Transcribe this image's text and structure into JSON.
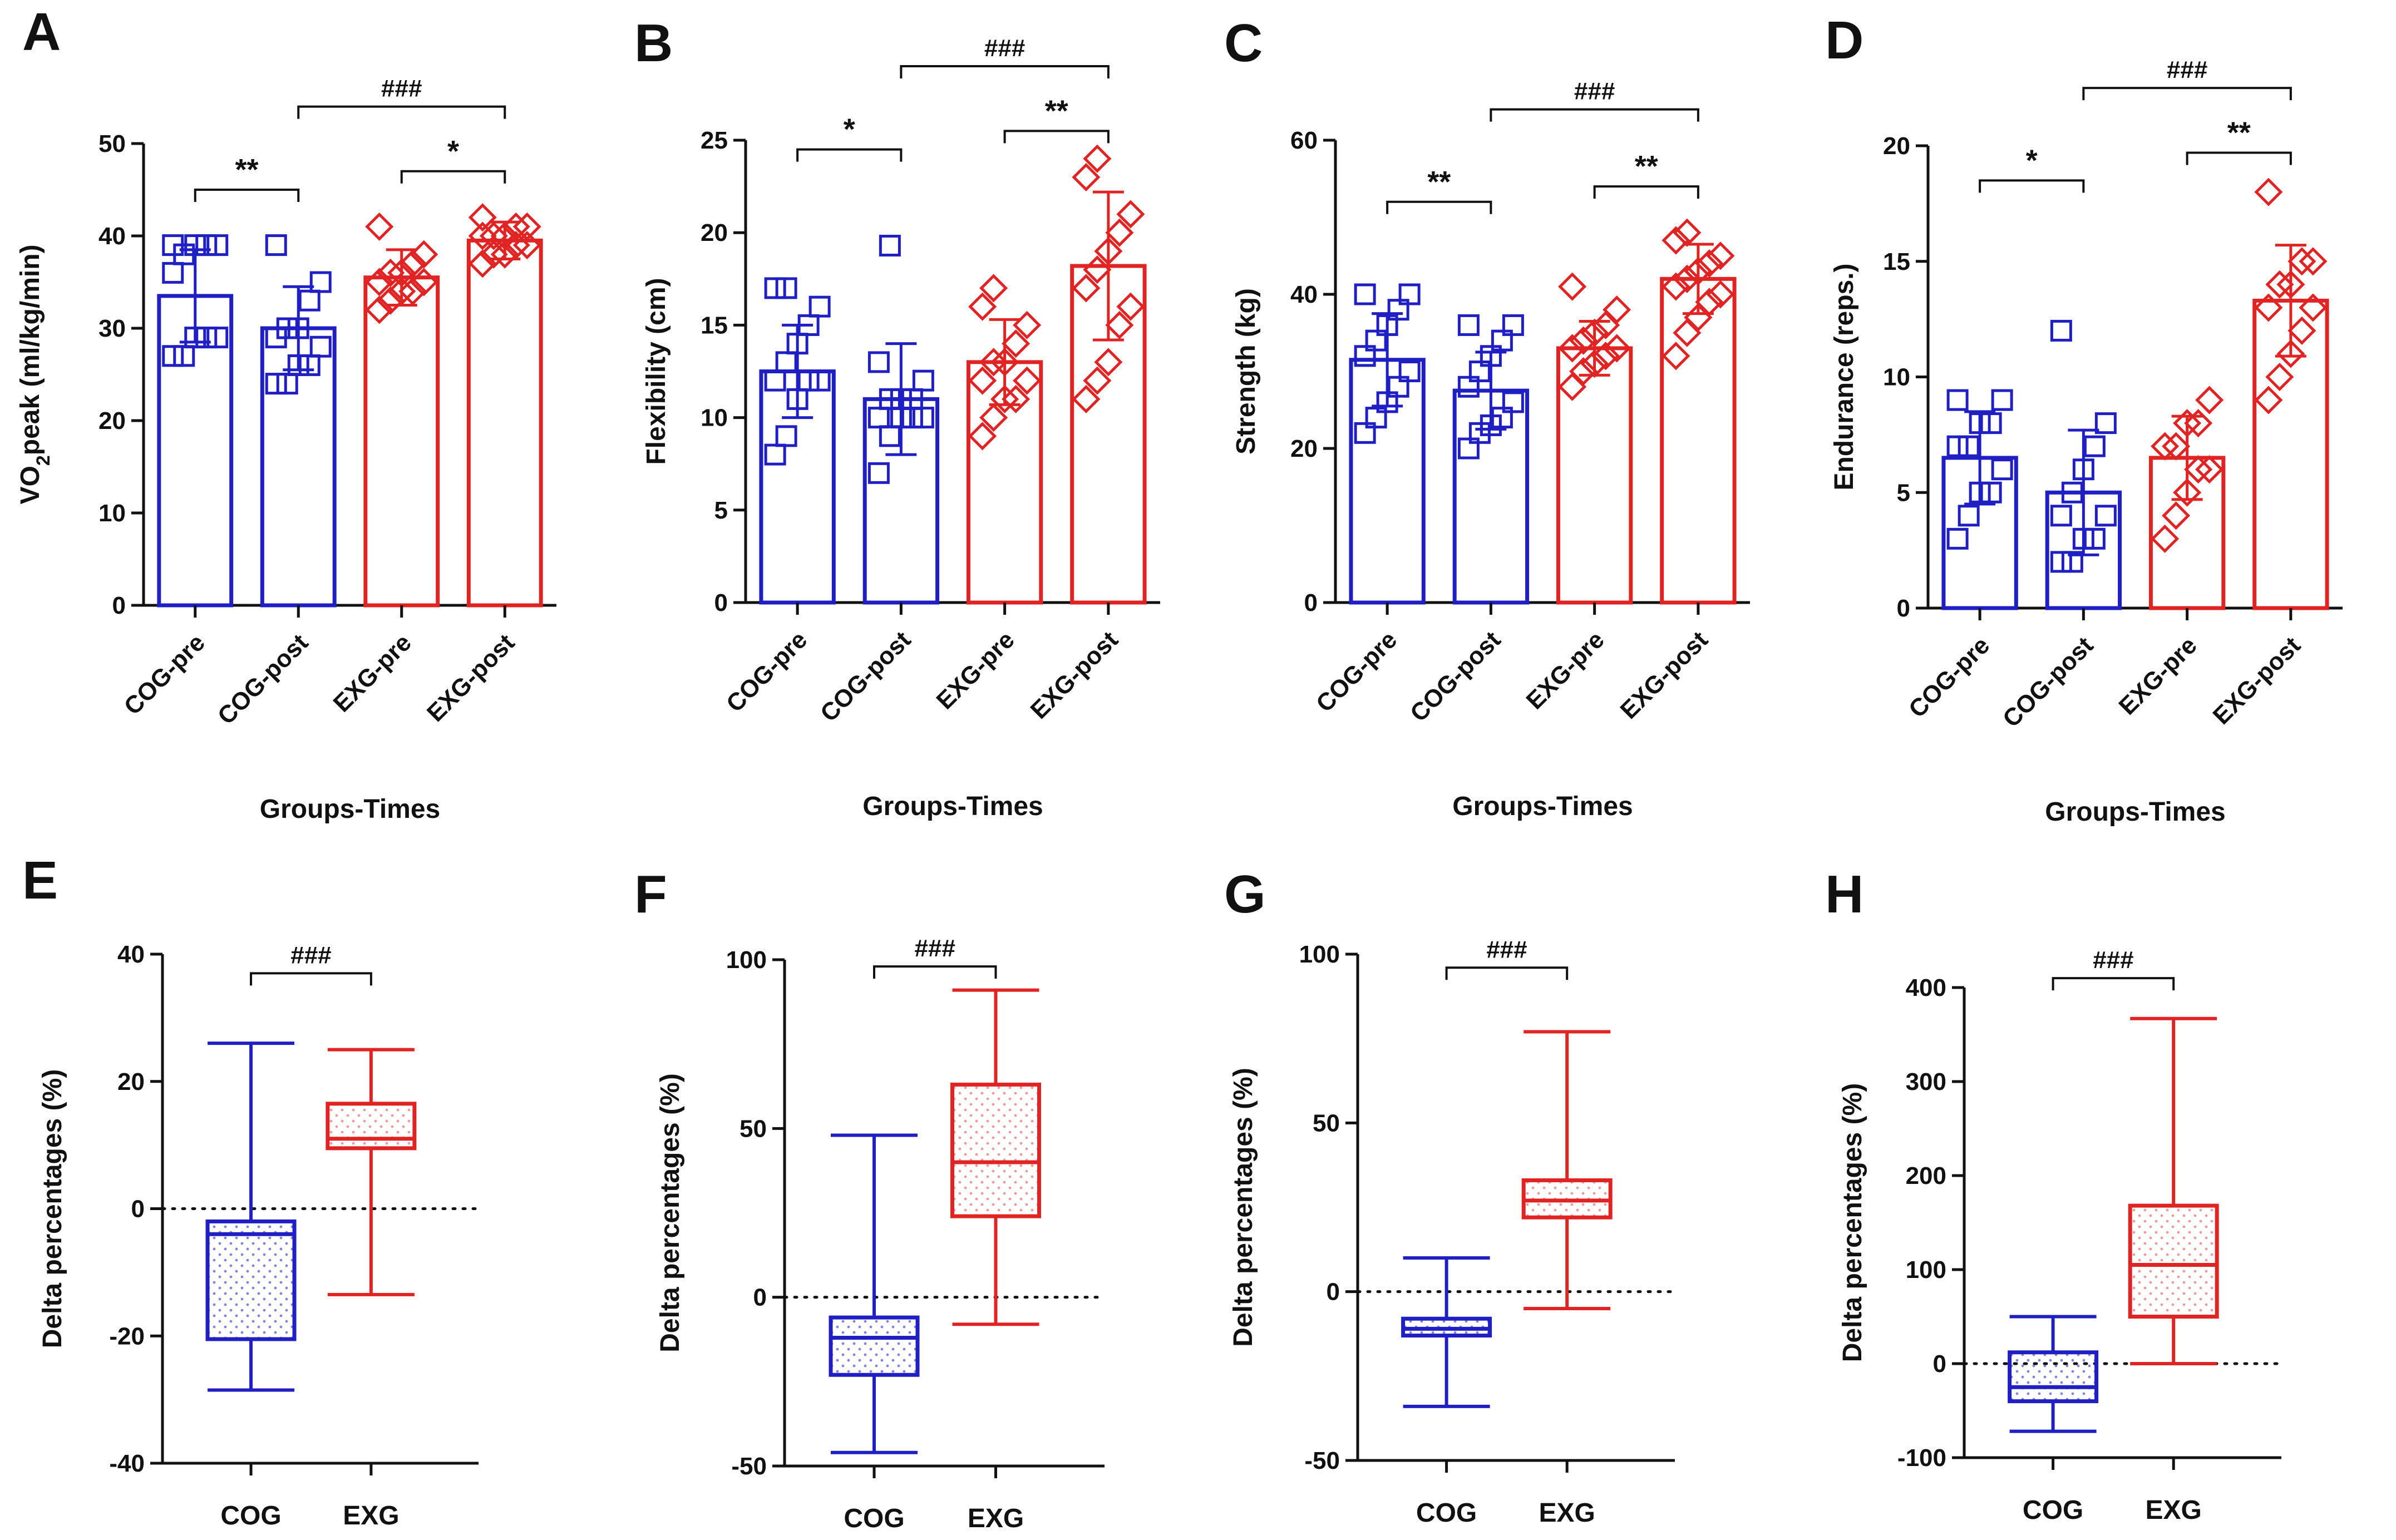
{
  "colors": {
    "cog": "#1f1fc4",
    "exg": "#e02424",
    "axis": "#111111"
  },
  "chart_data": [
    {
      "id": "A",
      "type": "bar",
      "panel_label": "A",
      "ylabel": "VO2peak (ml/kg/min)",
      "ylabel_main": "VO",
      "ylabel_sub": "2",
      "ylabel_rest": "peak (ml/kg/min)",
      "xlabel": "Groups-Times",
      "categories": [
        "COG-pre",
        "COG-post",
        "EXG-pre",
        "EXG-post"
      ],
      "group_colors": [
        "cog",
        "cog",
        "exg",
        "exg"
      ],
      "markers": [
        "square",
        "square",
        "diamond",
        "diamond"
      ],
      "values": [
        33.5,
        30,
        35.5,
        39.5
      ],
      "sd": [
        5,
        4.5,
        3,
        2
      ],
      "ylim": [
        0,
        50
      ],
      "yticks": [
        0,
        10,
        20,
        30,
        40,
        50
      ],
      "points": [
        [
          27,
          27,
          29,
          29,
          29,
          36,
          38,
          39,
          39,
          39,
          39
        ],
        [
          24,
          24,
          26,
          26,
          28,
          29,
          30,
          30,
          33,
          35,
          39
        ],
        [
          32,
          33,
          34,
          34,
          35,
          35,
          36,
          36,
          37,
          38,
          41
        ],
        [
          37,
          38,
          38,
          39,
          39,
          40,
          40,
          40,
          41,
          41,
          42
        ]
      ],
      "sig": [
        {
          "from": 0,
          "to": 1,
          "label": "**",
          "level": 45
        },
        {
          "from": 2,
          "to": 3,
          "label": "*",
          "level": 47
        },
        {
          "from": 1,
          "to": 3,
          "label": "###",
          "level": 54
        }
      ]
    },
    {
      "id": "B",
      "type": "bar",
      "panel_label": "B",
      "ylabel": "Flexibility (cm)",
      "xlabel": "Groups-Times",
      "categories": [
        "COG-pre",
        "COG-post",
        "EXG-pre",
        "EXG-post"
      ],
      "group_colors": [
        "cog",
        "cog",
        "exg",
        "exg"
      ],
      "markers": [
        "square",
        "square",
        "diamond",
        "diamond"
      ],
      "values": [
        12.5,
        11,
        13,
        18.2
      ],
      "sd": [
        2.5,
        3,
        2.3,
        4
      ],
      "ylim": [
        0,
        25
      ],
      "yticks": [
        0,
        5,
        10,
        15,
        20,
        25
      ],
      "points": [
        [
          8,
          9,
          11,
          12,
          12,
          12,
          13,
          14,
          15,
          16,
          17,
          17
        ],
        [
          7,
          9,
          10,
          10,
          10,
          10,
          11,
          11,
          11,
          12,
          13,
          19.3
        ],
        [
          9,
          10,
          11,
          11,
          12,
          12,
          13,
          13,
          14,
          15,
          16,
          17
        ],
        [
          11,
          12,
          13,
          15,
          16,
          17,
          18,
          19,
          20,
          21,
          23,
          24
        ]
      ],
      "sig": [
        {
          "from": 0,
          "to": 1,
          "label": "*",
          "level": 24.5
        },
        {
          "from": 2,
          "to": 3,
          "label": "**",
          "level": 25.5
        },
        {
          "from": 1,
          "to": 3,
          "label": "###",
          "level": 29
        }
      ]
    },
    {
      "id": "C",
      "type": "bar",
      "panel_label": "C",
      "ylabel": "Strength (kg)",
      "xlabel": "Groups-Times",
      "categories": [
        "COG-pre",
        "COG-post",
        "EXG-pre",
        "EXG-post"
      ],
      "group_colors": [
        "cog",
        "cog",
        "exg",
        "exg"
      ],
      "markers": [
        "square",
        "square",
        "diamond",
        "diamond"
      ],
      "values": [
        31.5,
        27.5,
        33,
        42
      ],
      "sd": [
        6,
        5,
        3.5,
        4.5
      ],
      "ylim": [
        0,
        60
      ],
      "yticks": [
        0,
        20,
        40,
        60
      ],
      "points": [
        [
          22,
          24,
          26,
          28,
          30,
          32,
          34,
          36,
          38,
          40,
          40
        ],
        [
          20,
          22,
          23,
          24,
          26,
          28,
          30,
          32,
          34,
          36,
          36
        ],
        [
          28,
          30,
          31,
          32,
          33,
          33,
          34,
          35,
          36,
          38,
          41
        ],
        [
          32,
          35,
          37,
          39,
          40,
          41,
          42,
          43,
          44,
          45,
          47,
          48
        ]
      ],
      "sig": [
        {
          "from": 0,
          "to": 1,
          "label": "**",
          "level": 52
        },
        {
          "from": 2,
          "to": 3,
          "label": "**",
          "level": 54
        },
        {
          "from": 1,
          "to": 3,
          "label": "###",
          "level": 64
        }
      ]
    },
    {
      "id": "D",
      "type": "bar",
      "panel_label": "D",
      "ylabel": "Endurance (reps.)",
      "xlabel": "Groups-Times",
      "categories": [
        "COG-pre",
        "COG-post",
        "EXG-pre",
        "EXG-post"
      ],
      "group_colors": [
        "cog",
        "cog",
        "exg",
        "exg"
      ],
      "markers": [
        "square",
        "square",
        "diamond",
        "diamond"
      ],
      "values": [
        6.5,
        5,
        6.5,
        13.3
      ],
      "sd": [
        2,
        2.7,
        1.8,
        2.4
      ],
      "ylim": [
        0,
        20
      ],
      "yticks": [
        0,
        5,
        10,
        15,
        20
      ],
      "points": [
        [
          3,
          4,
          5,
          5,
          6,
          7,
          7,
          8,
          8,
          9,
          9
        ],
        [
          2,
          2,
          3,
          3,
          4,
          4,
          5,
          6,
          7,
          8,
          12
        ],
        [
          3,
          4,
          5,
          6,
          6,
          7,
          7,
          8,
          8,
          9
        ],
        [
          9,
          10,
          11,
          12,
          13,
          13,
          14,
          14,
          15,
          15,
          18
        ]
      ],
      "sig": [
        {
          "from": 0,
          "to": 1,
          "label": "*",
          "level": 18.5
        },
        {
          "from": 2,
          "to": 3,
          "label": "**",
          "level": 19.7
        },
        {
          "from": 1,
          "to": 3,
          "label": "###",
          "level": 22.5
        }
      ]
    },
    {
      "id": "E",
      "type": "box",
      "panel_label": "E",
      "ylabel": "Delta percentages (%)",
      "categories": [
        "COG",
        "EXG"
      ],
      "group_colors": [
        "cog",
        "exg"
      ],
      "boxes": [
        {
          "min": -28.5,
          "q1": -20.5,
          "median": -4,
          "q3": -2,
          "max": 26
        },
        {
          "min": -13.5,
          "q1": 9.5,
          "median": 11,
          "q3": 16.5,
          "max": 25
        }
      ],
      "ylim": [
        -40,
        40
      ],
      "yticks": [
        -40,
        -20,
        0,
        20,
        40
      ],
      "sig": [
        {
          "from": 0,
          "to": 1,
          "label": "###",
          "level": 37
        }
      ]
    },
    {
      "id": "F",
      "type": "box",
      "panel_label": "F",
      "ylabel": "Delta percentages (%)",
      "categories": [
        "COG",
        "EXG"
      ],
      "group_colors": [
        "cog",
        "exg"
      ],
      "boxes": [
        {
          "min": -46,
          "q1": -23,
          "median": -12,
          "q3": -6,
          "max": 48
        },
        {
          "min": -8,
          "q1": 24,
          "median": 40,
          "q3": 63,
          "max": 91
        }
      ],
      "ylim": [
        -50,
        100
      ],
      "yticks": [
        -50,
        0,
        50,
        100
      ],
      "sig": [
        {
          "from": 0,
          "to": 1,
          "label": "###",
          "level": 98
        }
      ]
    },
    {
      "id": "G",
      "type": "box",
      "panel_label": "G",
      "ylabel": "Delta percentages (%)",
      "categories": [
        "COG",
        "EXG"
      ],
      "group_colors": [
        "cog",
        "exg"
      ],
      "boxes": [
        {
          "min": -34,
          "q1": -13,
          "median": -11,
          "q3": -8,
          "max": 10
        },
        {
          "min": -5,
          "q1": 22,
          "median": 27,
          "q3": 33,
          "max": 77
        }
      ],
      "ylim": [
        -50,
        100
      ],
      "yticks": [
        -50,
        0,
        50,
        100
      ],
      "sig": [
        {
          "from": 0,
          "to": 1,
          "label": "###",
          "level": 96
        }
      ]
    },
    {
      "id": "H",
      "type": "box",
      "panel_label": "H",
      "ylabel": "Delta percentages (%)",
      "categories": [
        "COG",
        "EXG"
      ],
      "group_colors": [
        "cog",
        "exg"
      ],
      "boxes": [
        {
          "min": -72,
          "q1": -40,
          "median": -25,
          "q3": 12,
          "max": 50
        },
        {
          "min": 0,
          "q1": 50,
          "median": 105,
          "q3": 168,
          "max": 367
        }
      ],
      "ylim": [
        -100,
        400
      ],
      "yticks": [
        -100,
        0,
        100,
        200,
        300,
        400
      ],
      "sig": [
        {
          "from": 0,
          "to": 1,
          "label": "###",
          "level": 410
        }
      ]
    }
  ]
}
